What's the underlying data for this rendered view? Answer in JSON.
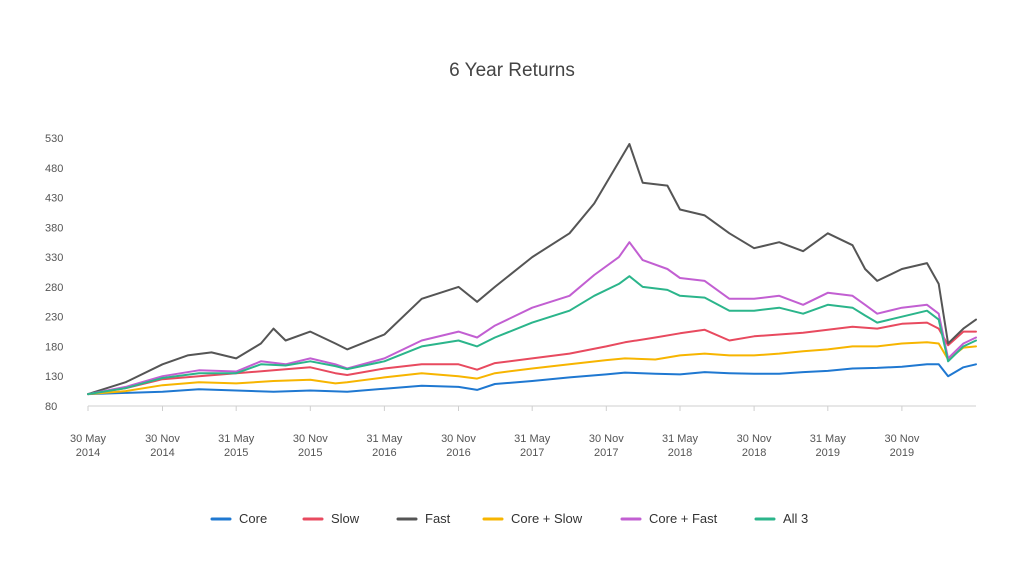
{
  "chart_data": {
    "type": "line",
    "title": "6 Year Returns",
    "xlabel": "",
    "ylabel": "",
    "ylim": [
      80,
      530
    ],
    "yticks": [
      80,
      130,
      180,
      230,
      280,
      330,
      380,
      430,
      480,
      530
    ],
    "xlim": [
      "2014-05-30",
      "2020-05-31"
    ],
    "xticks": [
      {
        "date": "2014-05-30",
        "line1": "30 May",
        "line2": "2014"
      },
      {
        "date": "2014-11-30",
        "line1": "30 Nov",
        "line2": "2014"
      },
      {
        "date": "2015-05-31",
        "line1": "31 May",
        "line2": "2015"
      },
      {
        "date": "2015-11-30",
        "line1": "30 Nov",
        "line2": "2015"
      },
      {
        "date": "2016-05-31",
        "line1": "31 May",
        "line2": "2016"
      },
      {
        "date": "2016-11-30",
        "line1": "30 Nov",
        "line2": "2016"
      },
      {
        "date": "2017-05-31",
        "line1": "31 May",
        "line2": "2017"
      },
      {
        "date": "2017-11-30",
        "line1": "30 Nov",
        "line2": "2017"
      },
      {
        "date": "2018-05-31",
        "line1": "31 May",
        "line2": "2018"
      },
      {
        "date": "2018-11-30",
        "line1": "30 Nov",
        "line2": "2018"
      },
      {
        "date": "2019-05-31",
        "line1": "31 May",
        "line2": "2019"
      },
      {
        "date": "2019-11-30",
        "line1": "30 Nov",
        "line2": "2019"
      }
    ],
    "grid": false,
    "legend_position": "bottom",
    "series": [
      {
        "name": "Core",
        "color": "#1f78d1",
        "points": [
          [
            "2014-05-30",
            100
          ],
          [
            "2014-08-31",
            102
          ],
          [
            "2014-11-30",
            104
          ],
          [
            "2015-02-28",
            108
          ],
          [
            "2015-05-31",
            106
          ],
          [
            "2015-08-31",
            104
          ],
          [
            "2015-11-30",
            106
          ],
          [
            "2016-02-29",
            104
          ],
          [
            "2016-05-31",
            109
          ],
          [
            "2016-08-31",
            114
          ],
          [
            "2016-11-30",
            112
          ],
          [
            "2017-01-15",
            107
          ],
          [
            "2017-02-28",
            117
          ],
          [
            "2017-05-31",
            122
          ],
          [
            "2017-08-31",
            128
          ],
          [
            "2017-11-30",
            133
          ],
          [
            "2018-01-15",
            136
          ],
          [
            "2018-03-31",
            134
          ],
          [
            "2018-05-31",
            133
          ],
          [
            "2018-07-31",
            137
          ],
          [
            "2018-09-30",
            135
          ],
          [
            "2018-11-30",
            134
          ],
          [
            "2019-01-31",
            134
          ],
          [
            "2019-03-31",
            137
          ],
          [
            "2019-05-31",
            139
          ],
          [
            "2019-07-31",
            143
          ],
          [
            "2019-09-30",
            144
          ],
          [
            "2019-11-30",
            146
          ],
          [
            "2020-01-31",
            150
          ],
          [
            "2020-02-29",
            150
          ],
          [
            "2020-03-23",
            130
          ],
          [
            "2020-04-30",
            145
          ],
          [
            "2020-05-31",
            150
          ]
        ]
      },
      {
        "name": "Slow",
        "color": "#e84a5f",
        "points": [
          [
            "2014-05-30",
            100
          ],
          [
            "2014-08-31",
            110
          ],
          [
            "2014-11-30",
            125
          ],
          [
            "2015-02-28",
            130
          ],
          [
            "2015-05-31",
            135
          ],
          [
            "2015-08-31",
            140
          ],
          [
            "2015-11-30",
            145
          ],
          [
            "2016-01-31",
            135
          ],
          [
            "2016-02-29",
            132
          ],
          [
            "2016-05-31",
            143
          ],
          [
            "2016-08-31",
            150
          ],
          [
            "2016-11-30",
            150
          ],
          [
            "2017-01-15",
            141
          ],
          [
            "2017-02-28",
            152
          ],
          [
            "2017-05-31",
            160
          ],
          [
            "2017-08-31",
            168
          ],
          [
            "2017-11-30",
            180
          ],
          [
            "2018-01-15",
            187
          ],
          [
            "2018-03-31",
            195
          ],
          [
            "2018-05-31",
            202
          ],
          [
            "2018-07-31",
            208
          ],
          [
            "2018-09-30",
            190
          ],
          [
            "2018-11-30",
            197
          ],
          [
            "2019-01-31",
            200
          ],
          [
            "2019-03-31",
            203
          ],
          [
            "2019-05-31",
            208
          ],
          [
            "2019-07-31",
            213
          ],
          [
            "2019-09-30",
            210
          ],
          [
            "2019-11-30",
            218
          ],
          [
            "2020-01-31",
            220
          ],
          [
            "2020-02-29",
            210
          ],
          [
            "2020-03-23",
            182
          ],
          [
            "2020-04-30",
            205
          ],
          [
            "2020-05-31",
            205
          ]
        ]
      },
      {
        "name": "Fast",
        "color": "#555555",
        "points": [
          [
            "2014-05-30",
            100
          ],
          [
            "2014-08-31",
            120
          ],
          [
            "2014-11-30",
            150
          ],
          [
            "2015-01-31",
            165
          ],
          [
            "2015-03-31",
            170
          ],
          [
            "2015-05-31",
            160
          ],
          [
            "2015-07-31",
            185
          ],
          [
            "2015-08-31",
            210
          ],
          [
            "2015-09-30",
            190
          ],
          [
            "2015-11-30",
            205
          ],
          [
            "2016-01-31",
            185
          ],
          [
            "2016-02-29",
            175
          ],
          [
            "2016-05-31",
            200
          ],
          [
            "2016-08-31",
            260
          ],
          [
            "2016-11-30",
            280
          ],
          [
            "2017-01-15",
            255
          ],
          [
            "2017-02-28",
            280
          ],
          [
            "2017-05-31",
            330
          ],
          [
            "2017-08-31",
            370
          ],
          [
            "2017-10-31",
            420
          ],
          [
            "2017-12-31",
            490
          ],
          [
            "2018-01-26",
            520
          ],
          [
            "2018-02-28",
            455
          ],
          [
            "2018-04-30",
            450
          ],
          [
            "2018-05-31",
            410
          ],
          [
            "2018-07-31",
            400
          ],
          [
            "2018-09-30",
            370
          ],
          [
            "2018-11-30",
            345
          ],
          [
            "2019-01-31",
            355
          ],
          [
            "2019-03-31",
            340
          ],
          [
            "2019-05-31",
            370
          ],
          [
            "2019-07-31",
            350
          ],
          [
            "2019-08-31",
            310
          ],
          [
            "2019-09-30",
            290
          ],
          [
            "2019-11-30",
            310
          ],
          [
            "2020-01-31",
            320
          ],
          [
            "2020-02-29",
            285
          ],
          [
            "2020-03-23",
            185
          ],
          [
            "2020-04-30",
            210
          ],
          [
            "2020-05-31",
            225
          ]
        ]
      },
      {
        "name": "Core + Slow",
        "color": "#f7b500",
        "points": [
          [
            "2014-05-30",
            100
          ],
          [
            "2014-08-31",
            105
          ],
          [
            "2014-11-30",
            115
          ],
          [
            "2015-02-28",
            120
          ],
          [
            "2015-05-31",
            118
          ],
          [
            "2015-08-31",
            122
          ],
          [
            "2015-11-30",
            124
          ],
          [
            "2016-01-31",
            118
          ],
          [
            "2016-02-29",
            120
          ],
          [
            "2016-05-31",
            128
          ],
          [
            "2016-08-31",
            135
          ],
          [
            "2016-11-30",
            130
          ],
          [
            "2017-01-15",
            126
          ],
          [
            "2017-02-28",
            135
          ],
          [
            "2017-05-31",
            143
          ],
          [
            "2017-08-31",
            150
          ],
          [
            "2017-11-30",
            157
          ],
          [
            "2018-01-15",
            160
          ],
          [
            "2018-03-31",
            158
          ],
          [
            "2018-05-31",
            165
          ],
          [
            "2018-07-31",
            168
          ],
          [
            "2018-09-30",
            165
          ],
          [
            "2018-11-30",
            165
          ],
          [
            "2019-01-31",
            168
          ],
          [
            "2019-03-31",
            172
          ],
          [
            "2019-05-31",
            175
          ],
          [
            "2019-07-31",
            180
          ],
          [
            "2019-09-30",
            180
          ],
          [
            "2019-11-30",
            185
          ],
          [
            "2020-01-31",
            187
          ],
          [
            "2020-02-29",
            185
          ],
          [
            "2020-03-23",
            158
          ],
          [
            "2020-04-30",
            178
          ],
          [
            "2020-05-31",
            180
          ]
        ]
      },
      {
        "name": "Core + Fast",
        "color": "#c25fd2",
        "points": [
          [
            "2014-05-30",
            100
          ],
          [
            "2014-08-31",
            112
          ],
          [
            "2014-11-30",
            130
          ],
          [
            "2015-02-28",
            140
          ],
          [
            "2015-05-31",
            138
          ],
          [
            "2015-07-31",
            155
          ],
          [
            "2015-09-30",
            150
          ],
          [
            "2015-11-30",
            160
          ],
          [
            "2016-01-31",
            150
          ],
          [
            "2016-02-29",
            143
          ],
          [
            "2016-05-31",
            160
          ],
          [
            "2016-08-31",
            190
          ],
          [
            "2016-11-30",
            205
          ],
          [
            "2017-01-15",
            195
          ],
          [
            "2017-02-28",
            215
          ],
          [
            "2017-05-31",
            245
          ],
          [
            "2017-08-31",
            265
          ],
          [
            "2017-10-31",
            300
          ],
          [
            "2017-12-31",
            330
          ],
          [
            "2018-01-26",
            355
          ],
          [
            "2018-02-28",
            325
          ],
          [
            "2018-04-30",
            310
          ],
          [
            "2018-05-31",
            295
          ],
          [
            "2018-07-31",
            290
          ],
          [
            "2018-09-30",
            260
          ],
          [
            "2018-11-30",
            260
          ],
          [
            "2019-01-31",
            265
          ],
          [
            "2019-03-31",
            250
          ],
          [
            "2019-05-31",
            270
          ],
          [
            "2019-07-31",
            265
          ],
          [
            "2019-08-31",
            250
          ],
          [
            "2019-09-30",
            235
          ],
          [
            "2019-11-30",
            245
          ],
          [
            "2020-01-31",
            250
          ],
          [
            "2020-02-29",
            235
          ],
          [
            "2020-03-23",
            160
          ],
          [
            "2020-04-30",
            185
          ],
          [
            "2020-05-31",
            195
          ]
        ]
      },
      {
        "name": "All 3",
        "color": "#2bb58b",
        "points": [
          [
            "2014-05-30",
            100
          ],
          [
            "2014-08-31",
            110
          ],
          [
            "2014-11-30",
            127
          ],
          [
            "2015-02-28",
            135
          ],
          [
            "2015-05-31",
            135
          ],
          [
            "2015-07-31",
            150
          ],
          [
            "2015-09-30",
            148
          ],
          [
            "2015-11-30",
            155
          ],
          [
            "2016-01-31",
            147
          ],
          [
            "2016-02-29",
            142
          ],
          [
            "2016-05-31",
            155
          ],
          [
            "2016-08-31",
            180
          ],
          [
            "2016-11-30",
            190
          ],
          [
            "2017-01-15",
            180
          ],
          [
            "2017-02-28",
            195
          ],
          [
            "2017-05-31",
            220
          ],
          [
            "2017-08-31",
            240
          ],
          [
            "2017-10-31",
            265
          ],
          [
            "2017-12-31",
            285
          ],
          [
            "2018-01-26",
            298
          ],
          [
            "2018-02-28",
            280
          ],
          [
            "2018-04-30",
            275
          ],
          [
            "2018-05-31",
            265
          ],
          [
            "2018-07-31",
            262
          ],
          [
            "2018-09-30",
            240
          ],
          [
            "2018-11-30",
            240
          ],
          [
            "2019-01-31",
            245
          ],
          [
            "2019-03-31",
            235
          ],
          [
            "2019-05-31",
            250
          ],
          [
            "2019-07-31",
            245
          ],
          [
            "2019-08-31",
            232
          ],
          [
            "2019-09-30",
            220
          ],
          [
            "2019-11-30",
            230
          ],
          [
            "2020-01-31",
            240
          ],
          [
            "2020-02-29",
            225
          ],
          [
            "2020-03-23",
            155
          ],
          [
            "2020-04-30",
            180
          ],
          [
            "2020-05-31",
            190
          ]
        ]
      }
    ]
  }
}
